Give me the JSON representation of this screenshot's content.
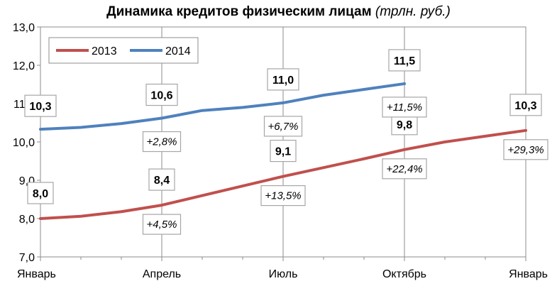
{
  "chart_data": {
    "type": "line",
    "title": "Динамика кредитов физическим лицам",
    "title_unit": "(трлн. руб.)",
    "x_tick_labels": [
      "Январь",
      "Апрель",
      "Июль",
      "Октябрь",
      "Январь"
    ],
    "x_points_per_series": 13,
    "ylim": [
      7.0,
      13.0
    ],
    "y_ticks": [
      "7,0",
      "8,0",
      "9,0",
      "10,0",
      "11,0",
      "12,0",
      "13,0"
    ],
    "grid": "vertical",
    "legend_position": "top-left",
    "series": [
      {
        "name": "2013",
        "color": "#c0504d",
        "values": [
          8.0,
          8.06,
          8.18,
          8.35,
          8.6,
          8.85,
          9.1,
          9.33,
          9.56,
          9.8,
          10.0,
          10.15,
          10.3
        ]
      },
      {
        "name": "2014",
        "color": "#4f81bd",
        "values": [
          10.33,
          10.38,
          10.48,
          10.62,
          10.82,
          10.9,
          11.02,
          11.22,
          11.37,
          11.52
        ]
      }
    ],
    "value_labels": [
      {
        "series": 0,
        "index": 0,
        "text": "8,0"
      },
      {
        "series": 0,
        "index": 3,
        "text": "8,4"
      },
      {
        "series": 0,
        "index": 6,
        "text": "9,1"
      },
      {
        "series": 0,
        "index": 9,
        "text": "9,8"
      },
      {
        "series": 0,
        "index": 12,
        "text": "10,3"
      },
      {
        "series": 1,
        "index": 0,
        "text": "10,3"
      },
      {
        "series": 1,
        "index": 3,
        "text": "10,6"
      },
      {
        "series": 1,
        "index": 6,
        "text": "11,0"
      },
      {
        "series": 1,
        "index": 9,
        "text": "11,5"
      }
    ],
    "growth_labels": [
      {
        "series": 0,
        "index": 3,
        "text": "+4,5%"
      },
      {
        "series": 0,
        "index": 6,
        "text": "+13,5%"
      },
      {
        "series": 0,
        "index": 9,
        "text": "+22,4%"
      },
      {
        "series": 0,
        "index": 12,
        "text": "+29,3%"
      },
      {
        "series": 1,
        "index": 3,
        "text": "+2,8%"
      },
      {
        "series": 1,
        "index": 6,
        "text": "+6,7%"
      },
      {
        "series": 1,
        "index": 9,
        "text": "+11,5%"
      }
    ]
  }
}
